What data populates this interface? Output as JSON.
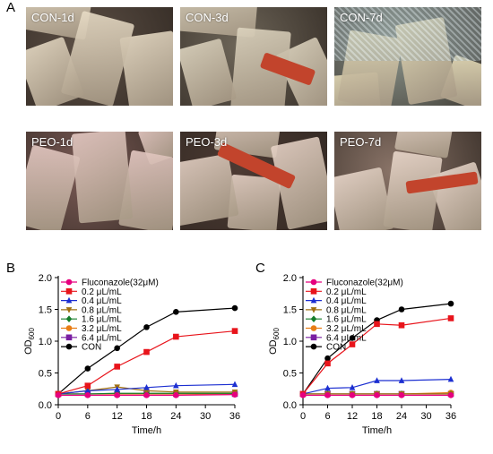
{
  "panels": {
    "a": "A",
    "b": "B",
    "c": "C"
  },
  "photos": [
    {
      "label": "CON-1d",
      "bg": "#5c4f45",
      "tint": "#e8dcc6"
    },
    {
      "label": "CON-3d",
      "bg": "#6d6558",
      "tint": "#ddd4bf"
    },
    {
      "label": "CON-7d",
      "bg": "#8c958c",
      "tint": "#e6dcb8"
    },
    {
      "label": "PEO-1d",
      "bg": "#7a5a55",
      "tint": "#e5c9c3"
    },
    {
      "label": "PEO-3d",
      "bg": "#4c3a33",
      "tint": "#e6d2c6"
    },
    {
      "label": "PEO-7d",
      "bg": "#8a7468",
      "tint": "#ead8cc"
    }
  ],
  "legend_labels": [
    "Fluconazole(32μM)",
    "0.2 μL/mL",
    "0.4 μL/mL",
    "0.8 μL/mL",
    "1.6 μL/mL",
    "3.2 μL/mL",
    "6.4 μL/mL",
    "CON"
  ],
  "chart_data": [
    {
      "type": "line",
      "panel": "B",
      "xlabel": "Time/h",
      "ylabel": "OD600",
      "x": [
        0,
        6,
        12,
        18,
        24,
        36
      ],
      "xlim": [
        0,
        36
      ],
      "ylim": [
        0,
        2.0
      ],
      "xticks": [
        0,
        6,
        12,
        18,
        24,
        30,
        36
      ],
      "yticks": [
        0.0,
        0.5,
        1.0,
        1.5,
        2.0
      ],
      "legend_position": "top-left",
      "series": [
        {
          "name": "Fluconazole(32μM)",
          "color": "#e6007e",
          "marker": "circle",
          "values": [
            0.15,
            0.15,
            0.15,
            0.15,
            0.15,
            0.16
          ]
        },
        {
          "name": "0.2 μL/mL",
          "color": "#e8141b",
          "marker": "square",
          "values": [
            0.17,
            0.3,
            0.6,
            0.83,
            1.07,
            1.16
          ]
        },
        {
          "name": "0.4 μL/mL",
          "color": "#1c2fd1",
          "marker": "triangle-up",
          "values": [
            0.17,
            0.22,
            0.24,
            0.27,
            0.3,
            0.32
          ]
        },
        {
          "name": "0.8 μL/mL",
          "color": "#a07010",
          "marker": "triangle-down",
          "values": [
            0.17,
            0.22,
            0.28,
            0.22,
            0.2,
            0.2
          ]
        },
        {
          "name": "1.6 μL/mL",
          "color": "#157d2a",
          "marker": "diamond",
          "values": [
            0.17,
            0.17,
            0.18,
            0.18,
            0.18,
            0.18
          ]
        },
        {
          "name": "3.2 μL/mL",
          "color": "#e87d16",
          "marker": "circle",
          "values": [
            0.17,
            0.17,
            0.17,
            0.17,
            0.17,
            0.17
          ]
        },
        {
          "name": "6.4 μL/mL",
          "color": "#7a1fa2",
          "marker": "square",
          "values": [
            0.17,
            0.17,
            0.17,
            0.17,
            0.17,
            0.17
          ]
        },
        {
          "name": "CON",
          "color": "#000000",
          "marker": "circle",
          "values": [
            0.17,
            0.57,
            0.89,
            1.22,
            1.46,
            1.52
          ]
        }
      ]
    },
    {
      "type": "line",
      "panel": "C",
      "xlabel": "Time/h",
      "ylabel": "OD600",
      "x": [
        0,
        6,
        12,
        18,
        24,
        36
      ],
      "xlim": [
        0,
        36
      ],
      "ylim": [
        0,
        2.0
      ],
      "xticks": [
        0,
        6,
        12,
        18,
        24,
        30,
        36
      ],
      "yticks": [
        0.0,
        0.5,
        1.0,
        1.5,
        2.0
      ],
      "legend_position": "top-left",
      "series": [
        {
          "name": "Fluconazole(32μM)",
          "color": "#e6007e",
          "marker": "circle",
          "values": [
            0.15,
            0.15,
            0.15,
            0.15,
            0.15,
            0.15
          ]
        },
        {
          "name": "0.2 μL/mL",
          "color": "#e8141b",
          "marker": "square",
          "values": [
            0.17,
            0.65,
            0.95,
            1.27,
            1.25,
            1.36
          ]
        },
        {
          "name": "0.4 μL/mL",
          "color": "#1c2fd1",
          "marker": "triangle-up",
          "values": [
            0.17,
            0.26,
            0.27,
            0.38,
            0.38,
            0.4
          ]
        },
        {
          "name": "0.8 μL/mL",
          "color": "#a07010",
          "marker": "triangle-down",
          "values": [
            0.17,
            0.17,
            0.17,
            0.17,
            0.17,
            0.17
          ]
        },
        {
          "name": "1.6 μL/mL",
          "color": "#157d2a",
          "marker": "diamond",
          "values": [
            0.17,
            0.17,
            0.17,
            0.17,
            0.17,
            0.17
          ]
        },
        {
          "name": "3.2 μL/mL",
          "color": "#e87d16",
          "marker": "circle",
          "values": [
            0.17,
            0.17,
            0.17,
            0.17,
            0.17,
            0.19
          ]
        },
        {
          "name": "6.4 μL/mL",
          "color": "#7a1fa2",
          "marker": "square",
          "values": [
            0.17,
            0.17,
            0.17,
            0.17,
            0.17,
            0.17
          ]
        },
        {
          "name": "CON",
          "color": "#000000",
          "marker": "circle",
          "values": [
            0.17,
            0.73,
            1.05,
            1.33,
            1.5,
            1.59
          ]
        }
      ]
    }
  ]
}
